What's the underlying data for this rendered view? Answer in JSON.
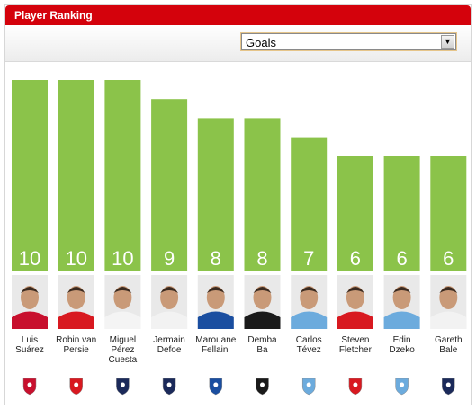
{
  "header": {
    "title": "Player Ranking"
  },
  "metric_select": {
    "value": "Goals"
  },
  "colors": {
    "bar": "#8bc34a",
    "header": "#d4020c"
  },
  "chart_data": {
    "type": "bar",
    "categories": [
      "Luis Suárez",
      "Robin van Persie",
      "Miguel Pérez Cuesta",
      "Jermain Defoe",
      "Marouane Fellaini",
      "Demba Ba",
      "Carlos Tévez",
      "Steven Fletcher",
      "Edin Dzeko",
      "Gareth Bale"
    ],
    "name_lines": [
      [
        "Luis",
        "Suárez"
      ],
      [
        "Robin van",
        "Persie"
      ],
      [
        "Miguel",
        "Pérez",
        "Cuesta"
      ],
      [
        "Jermain",
        "Defoe"
      ],
      [
        "Marouane",
        "Fellaini"
      ],
      [
        "Demba",
        "Ba"
      ],
      [
        "Carlos",
        "Tévez"
      ],
      [
        "Steven",
        "Fletcher"
      ],
      [
        "Edin",
        "Dzeko"
      ],
      [
        "Gareth",
        "Bale"
      ]
    ],
    "values": [
      10,
      10,
      10,
      9,
      8,
      8,
      7,
      6,
      6,
      6
    ],
    "ylim": [
      0,
      10
    ],
    "title": "",
    "xlabel": "",
    "ylabel": "",
    "club_icons": [
      "liverpool-crest-icon",
      "manchester-united-crest-icon",
      "swansea-crest-icon",
      "tottenham-crest-icon",
      "everton-crest-icon",
      "newcastle-crest-icon",
      "manchester-city-crest-icon",
      "sunderland-crest-icon",
      "manchester-city-crest-icon",
      "tottenham-crest-icon"
    ],
    "kit_colors": [
      "#c8102e",
      "#d81920",
      "#f4f4f4",
      "#f2f2f2",
      "#1a4ea0",
      "#1a1a1a",
      "#6cabdd",
      "#d81920",
      "#6cabdd",
      "#f2f2f2"
    ]
  }
}
